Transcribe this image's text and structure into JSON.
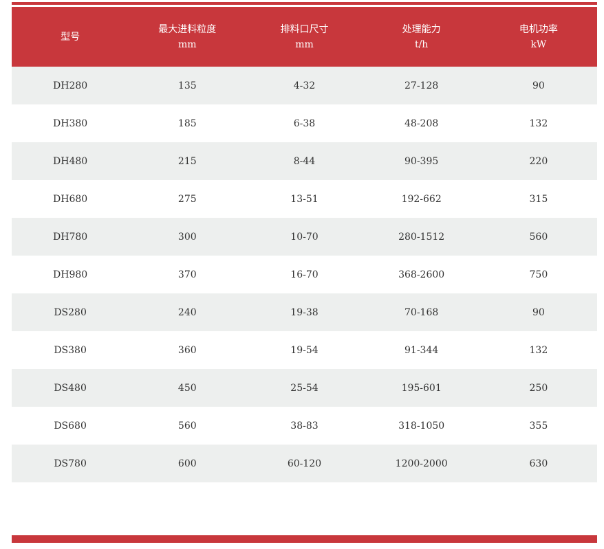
{
  "colors": {
    "accent": "#c8373c",
    "row_alt": "#edefee"
  },
  "headers": [
    {
      "label": "型号",
      "unit": ""
    },
    {
      "label": "最大进料粒度",
      "unit": "mm"
    },
    {
      "label": "排料口尺寸",
      "unit": "mm"
    },
    {
      "label": "处理能力",
      "unit": "t/h"
    },
    {
      "label": "电机功率",
      "unit": "kW"
    }
  ],
  "rows": [
    [
      "DH280",
      "135",
      "4-32",
      "27-128",
      "90"
    ],
    [
      "DH380",
      "185",
      "6-38",
      "48-208",
      "132"
    ],
    [
      "DH480",
      "215",
      "8-44",
      "90-395",
      "220"
    ],
    [
      "DH680",
      "275",
      "13-51",
      "192-662",
      "315"
    ],
    [
      "DH780",
      "300",
      "10-70",
      "280-1512",
      "560"
    ],
    [
      "DH980",
      "370",
      "16-70",
      "368-2600",
      "750"
    ],
    [
      "DS280",
      "240",
      "19-38",
      "70-168",
      "90"
    ],
    [
      "DS380",
      "360",
      "19-54",
      "91-344",
      "132"
    ],
    [
      "DS480",
      "450",
      "25-54",
      "195-601",
      "250"
    ],
    [
      "DS680",
      "560",
      "38-83",
      "318-1050",
      "355"
    ],
    [
      "DS780",
      "600",
      "60-120",
      "1200-2000",
      "630"
    ]
  ]
}
